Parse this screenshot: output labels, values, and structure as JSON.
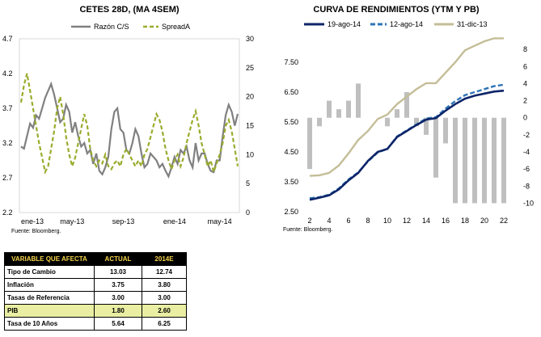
{
  "chart_data": [
    {
      "type": "line",
      "title": "CETES 28D, (MA 4SEM)",
      "source": "Fuente: Bloomberg.",
      "x_tick_labels": [
        "ene-13",
        "may-13",
        "sep-13",
        "ene-14",
        "may-14"
      ],
      "left_axis": {
        "min": 2.2,
        "max": 4.7,
        "ticks": [
          "4.7",
          "4.2",
          "3.7",
          "3.2",
          "2.7",
          "2.2"
        ]
      },
      "right_axis": {
        "min": 0,
        "max": 30,
        "ticks": [
          "30",
          "25",
          "20",
          "15",
          "10",
          "5",
          "0"
        ]
      },
      "grid": false,
      "legend": "top",
      "colors": {
        "razon": "#808080",
        "spread": "#9aab2c"
      },
      "series": [
        {
          "name": "Razón C/S",
          "axis": "left",
          "style": "solid",
          "values": [
            3.15,
            3.12,
            3.3,
            3.48,
            3.42,
            3.6,
            3.55,
            3.7,
            3.85,
            3.95,
            4.05,
            3.9,
            3.7,
            3.5,
            3.55,
            3.75,
            3.65,
            3.35,
            3.5,
            3.3,
            3.15,
            3.2,
            3.05,
            3.1,
            2.9,
            3.05,
            2.8,
            2.75,
            2.85,
            3.0,
            3.4,
            3.65,
            3.7,
            3.4,
            3.35,
            3.1,
            3.05,
            3.2,
            3.4,
            3.3,
            3.05,
            2.85,
            2.9,
            3.05,
            3.0,
            2.95,
            2.85,
            2.9,
            2.8,
            2.72,
            2.85,
            3.0,
            2.9,
            3.1,
            3.05,
            3.15,
            2.95,
            2.85,
            3.2,
            2.95,
            3.05,
            3.05,
            2.9,
            2.8,
            2.78,
            2.95,
            2.95,
            3.3,
            3.6,
            3.75,
            3.65,
            3.45,
            3.62
          ]
        },
        {
          "name": "SpreadA",
          "axis": "right",
          "style": "dashed",
          "values": [
            19,
            22,
            24,
            21,
            18,
            15,
            12,
            9.5,
            7,
            8,
            11,
            14,
            18,
            20,
            17,
            13,
            10,
            8,
            9.5,
            12,
            14.5,
            17,
            15,
            11,
            9,
            8,
            9,
            8.5,
            10,
            8,
            7.5,
            8.5,
            9,
            8,
            10,
            11,
            10,
            9,
            8,
            9,
            8,
            10,
            11,
            13,
            15,
            17,
            16,
            14,
            11,
            9,
            7.5,
            9,
            10,
            8,
            9.5,
            12,
            14,
            16,
            17.5,
            15,
            12,
            10,
            8,
            9,
            7,
            8.5,
            10,
            12,
            15,
            16,
            14,
            11,
            8
          ]
        }
      ]
    },
    {
      "type": "line+bar",
      "title": "CURVA DE RENDIMIENTOS (YTM Y PB)",
      "source": "Fuente: Bloomberg.",
      "x": [
        2,
        3,
        4,
        5,
        6,
        7,
        8,
        9,
        10,
        11,
        12,
        13,
        14,
        15,
        16,
        17,
        18,
        19,
        20,
        21,
        22
      ],
      "x_tick_labels": [
        "2",
        "4",
        "6",
        "8",
        "10",
        "12",
        "14",
        "16",
        "18",
        "20",
        "22"
      ],
      "left_axis": {
        "min": 2.5,
        "max": 8.5,
        "ticks": [
          "7.50",
          "6.50",
          "5.50",
          "4.50",
          "3.50",
          "2.50"
        ]
      },
      "right_axis": {
        "min": -11,
        "max": 10,
        "ticks": [
          "8",
          "6",
          "4",
          "2",
          "0",
          "-2",
          "-4",
          "-6",
          "-8",
          "-10"
        ]
      },
      "grid": false,
      "legend": "top",
      "colors": {
        "a": "#0d2468",
        "b": "#2e75b6",
        "c": "#c4bd97",
        "bars": "#bfbfbf"
      },
      "series": [
        {
          "name": "19-ago-14",
          "style": "solid",
          "values": [
            2.9,
            2.97,
            3.05,
            3.25,
            3.55,
            3.8,
            4.2,
            4.5,
            4.6,
            5.0,
            5.2,
            5.4,
            5.58,
            5.63,
            5.88,
            6.1,
            6.28,
            6.38,
            6.45,
            6.52,
            6.55
          ]
        },
        {
          "name": "12-ago-14",
          "style": "dashed",
          "values": [
            2.95,
            2.99,
            3.07,
            3.28,
            3.58,
            3.82,
            4.18,
            4.48,
            4.6,
            5.02,
            5.22,
            5.42,
            5.62,
            5.66,
            5.95,
            6.2,
            6.4,
            6.5,
            6.6,
            6.7,
            6.75
          ]
        },
        {
          "name": "31-dic-13",
          "style": "solid",
          "values": [
            3.7,
            3.72,
            3.8,
            4.05,
            4.45,
            4.9,
            5.2,
            5.6,
            5.75,
            6.1,
            6.35,
            6.6,
            6.8,
            6.8,
            7.15,
            7.5,
            7.9,
            8.05,
            8.2,
            8.3,
            8.3
          ]
        },
        {
          "name": "PB",
          "type": "bar",
          "axis": "right",
          "values": [
            -6,
            -1,
            2,
            1,
            2,
            4,
            0,
            0,
            -1,
            1,
            3,
            -1,
            -2,
            -7,
            -3,
            -10,
            -10,
            -10,
            -10,
            -10,
            -10
          ]
        }
      ]
    }
  ],
  "table": {
    "headers": [
      "VARIABLE QUE AFECTA",
      "ACTUAL",
      "2014E"
    ],
    "rows": [
      {
        "label": "Tipo de Cambio",
        "actual": "13.03",
        "e2014": "12.74"
      },
      {
        "label": "Inflación",
        "actual": "3.75",
        "e2014": "3.80"
      },
      {
        "label": "Tasas de Referencia",
        "actual": "3.00",
        "e2014": "3.00"
      },
      {
        "label": "PIB",
        "actual": "1.80",
        "e2014": "2.60"
      },
      {
        "label": "Tasa de 10 Años",
        "actual": "5.64",
        "e2014": "6.25"
      }
    ],
    "highlight_color": "#e9eea3"
  }
}
